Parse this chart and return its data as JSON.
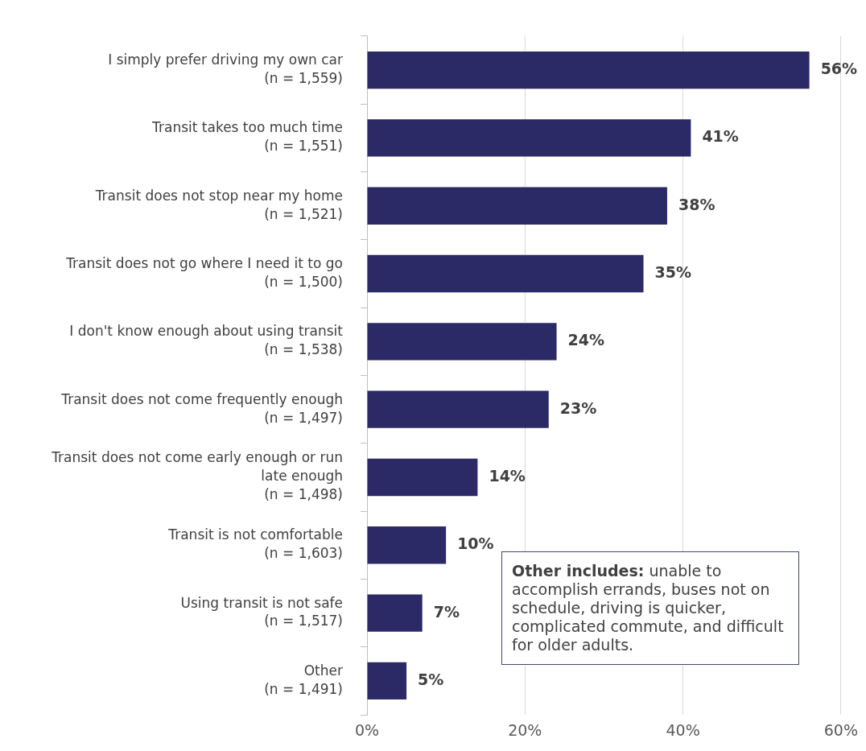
{
  "chart_data": {
    "type": "bar",
    "orientation": "horizontal",
    "categories": [
      "I simply prefer driving my own car\n(n = 1,559)",
      "Transit takes too much time\n(n = 1,551)",
      "Transit does not stop near my home\n(n = 1,521)",
      "Transit does not go where I need it to go\n(n = 1,500)",
      "I don't know enough about using transit\n(n = 1,538)",
      "Transit does not come frequently enough\n(n = 1,497)",
      "Transit does not come early enough or run\nlate enough\n(n = 1,498)",
      "Transit is not comfortable\n(n = 1,603)",
      "Using transit is not safe\n(n = 1,517)",
      "Other\n(n = 1,491)"
    ],
    "values": [
      56,
      41,
      38,
      35,
      24,
      23,
      14,
      10,
      7,
      5
    ],
    "value_labels": [
      "56%",
      "41%",
      "38%",
      "35%",
      "24%",
      "23%",
      "14%",
      "10%",
      "7%",
      "5%"
    ],
    "color": "#2b2a66",
    "xlim": [
      0,
      60
    ],
    "xticks": [
      {
        "value": 0,
        "label": "0%"
      },
      {
        "value": 20,
        "label": "20%"
      },
      {
        "value": 40,
        "label": "40%"
      },
      {
        "value": 60,
        "label": "60%"
      }
    ],
    "grid": "x",
    "annotations": [
      "Other includes: unable to accomplish errands, buses not on schedule, driving is quicker, complicated commute, and difficult for older adults."
    ]
  }
}
